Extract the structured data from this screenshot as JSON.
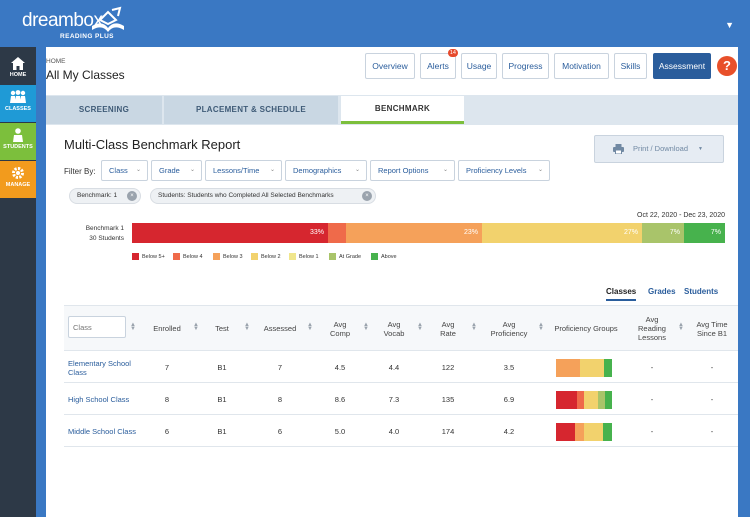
{
  "brand": {
    "name": "dreambox",
    "sub": "READING PLUS"
  },
  "sidebar": {
    "items": [
      {
        "label": "HOME",
        "icon": "home-icon"
      },
      {
        "label": "CLASSES",
        "icon": "classes-icon"
      },
      {
        "label": "STUDENTS",
        "icon": "student-icon"
      },
      {
        "label": "MANAGE",
        "icon": "gear-icon"
      }
    ]
  },
  "header": {
    "breadcrumb": "HOME",
    "title": "All My Classes"
  },
  "topnav": {
    "overview": "Overview",
    "alerts": "Alerts",
    "alerts_count": "14",
    "usage": "Usage",
    "progress": "Progress",
    "motivation": "Motivation",
    "skills": "Skills",
    "assessment": "Assessment",
    "help": "?"
  },
  "tabs": {
    "screening": "SCREENING",
    "placement": "PLACEMENT & SCHEDULE",
    "benchmark": "BENCHMARK"
  },
  "report": {
    "title": "Multi-Class Benchmark Report",
    "print_label": "Print / Download"
  },
  "filters": {
    "label": "Filter By:",
    "items": [
      "Class",
      "Grade",
      "Lessons/Time",
      "Demographics",
      "Report Options",
      "Proficiency Levels"
    ]
  },
  "chips": [
    "Benchmark: 1",
    "Students: Students who Completed All Selected Benchmarks"
  ],
  "chart_data": {
    "type": "bar",
    "title": "Benchmark 1 30 Students",
    "date_range": "Oct 22, 2020 - Dec 23, 2020",
    "bar_label_line1": "Benchmark 1",
    "bar_label_line2": "30 Students",
    "segments": [
      {
        "name": "Below 5+",
        "value": 33,
        "label": "33%",
        "color": "#d6262f"
      },
      {
        "name": "Below 4",
        "value": 3,
        "label": "",
        "color": "#ef6a4a"
      },
      {
        "name": "Below 3",
        "value": 23,
        "label": "23%",
        "color": "#f5a15a"
      },
      {
        "name": "Below 2",
        "value": 27,
        "label": "27%",
        "color": "#f2d26d"
      },
      {
        "name": "Below 1",
        "value": 0,
        "label": "",
        "color": "#f0e68c"
      },
      {
        "name": "At Grade",
        "value": 7,
        "label": "7%",
        "color": "#a9c46a"
      },
      {
        "name": "Above",
        "value": 7,
        "label": "7%",
        "color": "#47b24d"
      }
    ]
  },
  "view_tabs": {
    "classes": "Classes",
    "grades": "Grades",
    "students": "Students"
  },
  "table": {
    "class_placeholder": "Class",
    "headers": {
      "enrolled": "Enrolled",
      "test": "Test",
      "assessed": "Assessed",
      "avg_comp_1": "Avg",
      "avg_comp_2": "Comp",
      "avg_vocab_1": "Avg",
      "avg_vocab_2": "Vocab",
      "avg_rate_1": "Avg",
      "avg_rate_2": "Rate",
      "avg_prof_1": "Avg",
      "avg_prof_2": "Proficiency",
      "prof_groups": "Proficiency Groups",
      "avg_lessons_1": "Avg",
      "avg_lessons_2": "Reading",
      "avg_lessons_3": "Lessons",
      "avg_time_1": "Avg Time",
      "avg_time_2": "Since B1"
    },
    "rows": [
      {
        "name": "Elementary School Class",
        "enrolled": "7",
        "test": "B1",
        "assessed": "7",
        "comp": "4.5",
        "vocab": "4.4",
        "rate": "122",
        "prof": "3.5",
        "lessons": "-",
        "time": "-",
        "groups": [
          {
            "v": 0,
            "c": "#d6262f"
          },
          {
            "v": 3,
            "c": "#f5a15a"
          },
          {
            "v": 3,
            "c": "#f2d26d"
          },
          {
            "v": 1,
            "c": "#47b24d"
          }
        ]
      },
      {
        "name": "High School Class",
        "enrolled": "8",
        "test": "B1",
        "assessed": "8",
        "comp": "8.6",
        "vocab": "7.3",
        "rate": "135",
        "prof": "6.9",
        "lessons": "-",
        "time": "-",
        "groups": [
          {
            "v": 3,
            "c": "#d6262f"
          },
          {
            "v": 1,
            "c": "#ef6a4a"
          },
          {
            "v": 2,
            "c": "#f2d26d"
          },
          {
            "v": 1,
            "c": "#a9c46a"
          },
          {
            "v": 1,
            "c": "#47b24d"
          }
        ]
      },
      {
        "name": "Middle School Class",
        "enrolled": "6",
        "test": "B1",
        "assessed": "6",
        "comp": "5.0",
        "vocab": "4.0",
        "rate": "174",
        "prof": "4.2",
        "lessons": "-",
        "time": "-",
        "groups": [
          {
            "v": 2,
            "c": "#d6262f"
          },
          {
            "v": 1,
            "c": "#f5a15a"
          },
          {
            "v": 2,
            "c": "#f2d26d"
          },
          {
            "v": 1,
            "c": "#47b24d"
          }
        ]
      }
    ]
  }
}
